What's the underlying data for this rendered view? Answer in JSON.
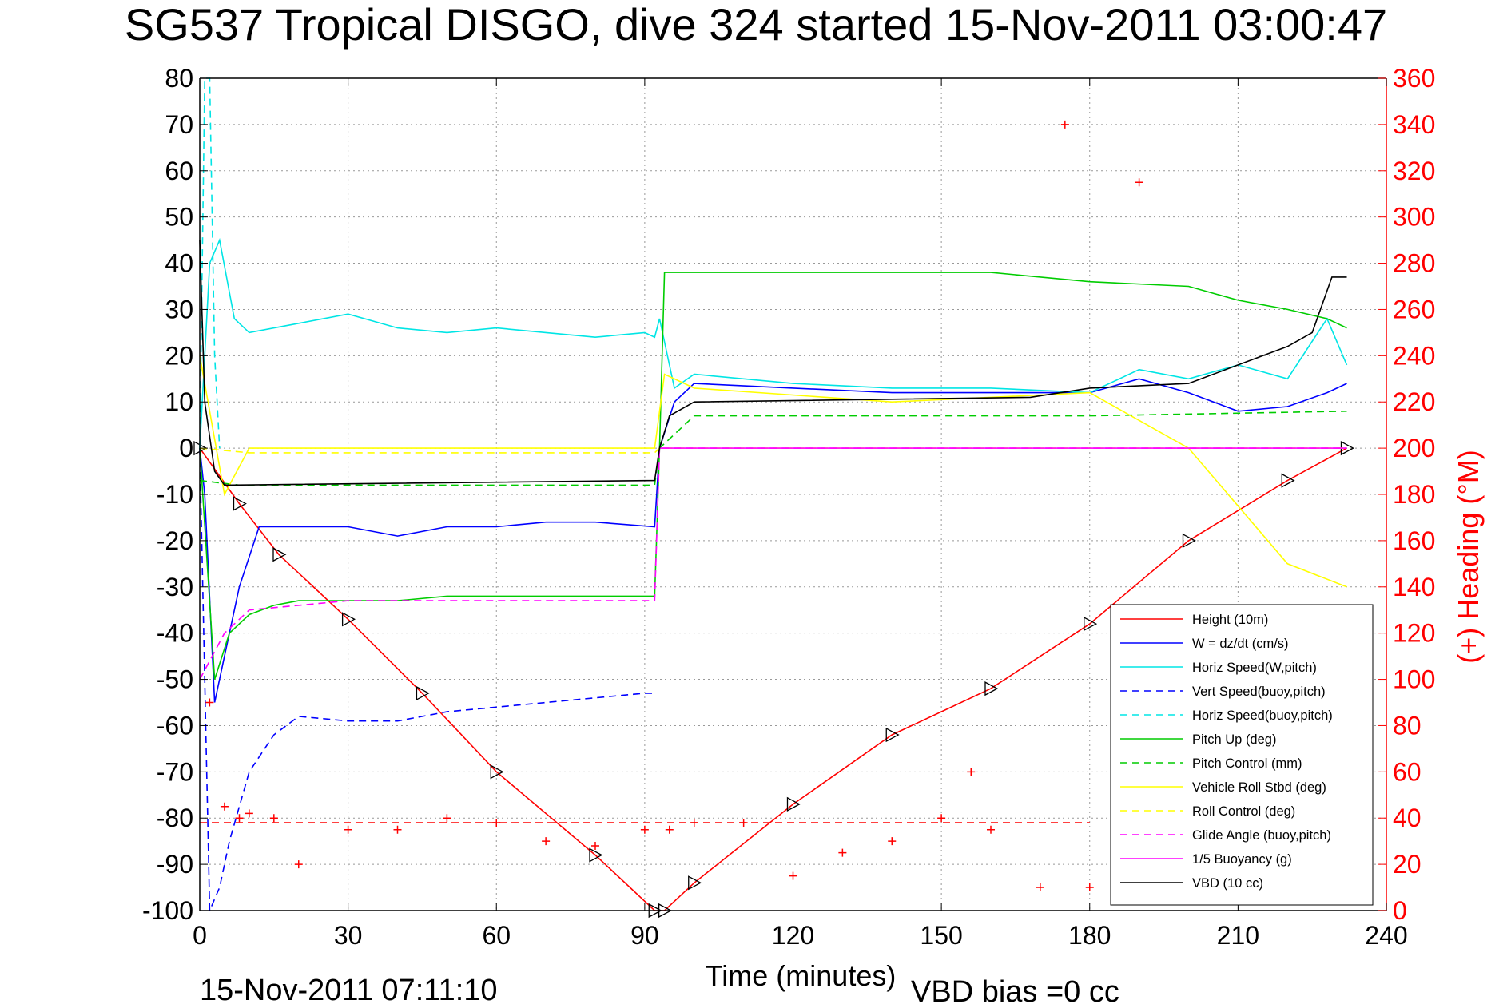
{
  "chart_data": {
    "type": "line",
    "title": "SG537 Tropical DISGO, dive 324 started 15-Nov-2011 03:00:47",
    "xlabel": "Time (minutes)",
    "ylabel": "",
    "y2label": "(+) Heading (°M)",
    "xlim": [
      0,
      240
    ],
    "ylim": [
      -100,
      80
    ],
    "y2lim": [
      0,
      360
    ],
    "xticks": [
      "0",
      "30",
      "60",
      "90",
      "120",
      "150",
      "180",
      "210",
      "240"
    ],
    "yticks": [
      "80",
      "70",
      "60",
      "50",
      "40",
      "30",
      "20",
      "10",
      "0",
      "-10",
      "-20",
      "-30",
      "-40",
      "-50",
      "-60",
      "-70",
      "-80",
      "-90",
      "-100"
    ],
    "y2ticks": [
      "360",
      "340",
      "320",
      "300",
      "280",
      "260",
      "240",
      "220",
      "200",
      "180",
      "160",
      "140",
      "120",
      "100",
      "80",
      "60",
      "40",
      "20",
      "0"
    ],
    "grid": true,
    "legend_position": "bottom-right",
    "footer_date": "15-Nov-2011 07:11:10",
    "footer_bias": "VBD bias =0 cc",
    "series": [
      {
        "name": "Height (10m)",
        "color": "#ff0000",
        "style": "solid",
        "x": [
          0,
          8,
          16,
          30,
          45,
          60,
          80,
          92,
          94,
          100,
          120,
          140,
          160,
          180,
          200,
          220,
          232
        ],
        "y": [
          0,
          -12,
          -23,
          -37,
          -53,
          -70,
          -88,
          -100,
          -100,
          -94,
          -77,
          -62,
          -52,
          -38,
          -20,
          -7,
          0
        ]
      },
      {
        "name": "W = dz/dt (cm/s)",
        "color": "#0000ff",
        "style": "solid",
        "x": [
          0,
          1,
          3,
          5,
          8,
          12,
          20,
          30,
          40,
          50,
          60,
          70,
          80,
          92,
          93,
          96,
          100,
          120,
          140,
          160,
          180,
          190,
          200,
          210,
          220,
          228,
          232
        ],
        "y": [
          0,
          -10,
          -55,
          -45,
          -30,
          -17,
          -17,
          -17,
          -19,
          -17,
          -17,
          -16,
          -16,
          -17,
          0,
          10,
          14,
          13,
          12,
          12,
          12,
          15,
          12,
          8,
          9,
          12,
          14
        ]
      },
      {
        "name": "Horiz Speed(W,pitch)",
        "color": "#00e5e5",
        "style": "solid",
        "x": [
          0,
          2,
          4,
          7,
          10,
          20,
          30,
          40,
          50,
          60,
          70,
          80,
          90,
          92,
          93,
          96,
          100,
          120,
          140,
          160,
          180,
          190,
          200,
          210,
          220,
          228,
          232
        ],
        "y": [
          0,
          40,
          45,
          28,
          25,
          27,
          29,
          26,
          25,
          26,
          25,
          24,
          25,
          24,
          28,
          13,
          16,
          14,
          13,
          13,
          12,
          17,
          15,
          18,
          15,
          28,
          18
        ]
      },
      {
        "name": "Vert Speed(buoy,pitch)",
        "color": "#0000ff",
        "style": "dashed",
        "x": [
          0,
          2,
          4,
          6,
          10,
          15,
          20,
          30,
          40,
          50,
          60,
          70,
          80,
          90,
          92
        ],
        "y": [
          0,
          -100,
          -95,
          -85,
          -70,
          -62,
          -58,
          -59,
          -59,
          -57,
          -56,
          -55,
          -54,
          -53,
          -53
        ]
      },
      {
        "name": "Horiz Speed(buoy,pitch)",
        "color": "#00e5e5",
        "style": "dashed",
        "x": [
          0,
          1,
          2,
          3,
          4
        ],
        "y": [
          0,
          80,
          80,
          20,
          0
        ]
      },
      {
        "name": "Pitch Up (deg)",
        "color": "#00cc00",
        "style": "solid",
        "x": [
          0,
          3,
          6,
          10,
          15,
          20,
          30,
          40,
          50,
          60,
          70,
          80,
          92,
          93,
          94,
          100,
          120,
          140,
          160,
          180,
          200,
          210,
          220,
          228,
          232
        ],
        "y": [
          0,
          -50,
          -40,
          -36,
          -34,
          -33,
          -33,
          -33,
          -32,
          -32,
          -32,
          -32,
          -32,
          0,
          38,
          38,
          38,
          38,
          38,
          36,
          35,
          32,
          30,
          28,
          26
        ]
      },
      {
        "name": "Pitch Control (mm)",
        "color": "#00cc00",
        "style": "dashed",
        "x": [
          0,
          8,
          92,
          93,
          100,
          180,
          232
        ],
        "y": [
          -7,
          -8,
          -8,
          0,
          7,
          7,
          8
        ]
      },
      {
        "name": "Vehicle Roll Stbd (deg)",
        "color": "#ffff00",
        "style": "solid",
        "x": [
          0,
          5,
          10,
          30,
          60,
          92,
          94,
          100,
          140,
          180,
          200,
          220,
          232
        ],
        "y": [
          20,
          -10,
          0,
          0,
          0,
          0,
          16,
          13,
          10,
          12,
          0,
          -25,
          -30
        ]
      },
      {
        "name": "Roll Control (deg)",
        "color": "#ffff00",
        "style": "dashed",
        "x": [
          0,
          10,
          92,
          93,
          232
        ],
        "y": [
          0,
          -1,
          -1,
          0,
          0
        ]
      },
      {
        "name": "Glide Angle (buoy,pitch)",
        "color": "#ff00ff",
        "style": "dashed",
        "x": [
          0,
          5,
          10,
          30,
          60,
          92,
          93,
          232
        ],
        "y": [
          -50,
          -40,
          -35,
          -33,
          -33,
          -33,
          0,
          0
        ]
      },
      {
        "name": "1/5 Buoyancy (g)",
        "color": "#ff00ff",
        "style": "solid",
        "x": [
          93,
          232
        ],
        "y": [
          0,
          0
        ]
      },
      {
        "name": "VBD (10 cc)",
        "color": "#000000",
        "style": "solid",
        "x": [
          0,
          1,
          3,
          5,
          92,
          93,
          95,
          100,
          168,
          180,
          200,
          210,
          220,
          225,
          229,
          232
        ],
        "y": [
          45,
          10,
          -5,
          -8,
          -7,
          0,
          7,
          10,
          11,
          13,
          14,
          18,
          22,
          25,
          37,
          37
        ]
      },
      {
        "name": "(+) Heading (°M)",
        "color": "#ff0000",
        "style": "markers",
        "axis": "right",
        "x": [
          2,
          5,
          8,
          10,
          15,
          20,
          30,
          40,
          50,
          60,
          70,
          80,
          90,
          95,
          100,
          110,
          120,
          130,
          140,
          150,
          156,
          160,
          170,
          175,
          180,
          190,
          200,
          210,
          220
        ],
        "y": [
          90,
          45,
          40,
          42,
          40,
          20,
          35,
          35,
          40,
          38,
          30,
          28,
          35,
          35,
          38,
          38,
          15,
          25,
          30,
          40,
          60,
          35,
          10,
          340,
          10,
          315,
          10,
          5,
          5
        ]
      },
      {
        "name": "",
        "color": "#ff0000",
        "style": "dashed",
        "axis": "right",
        "x": [
          0,
          180
        ],
        "y": [
          38,
          38
        ]
      }
    ]
  }
}
